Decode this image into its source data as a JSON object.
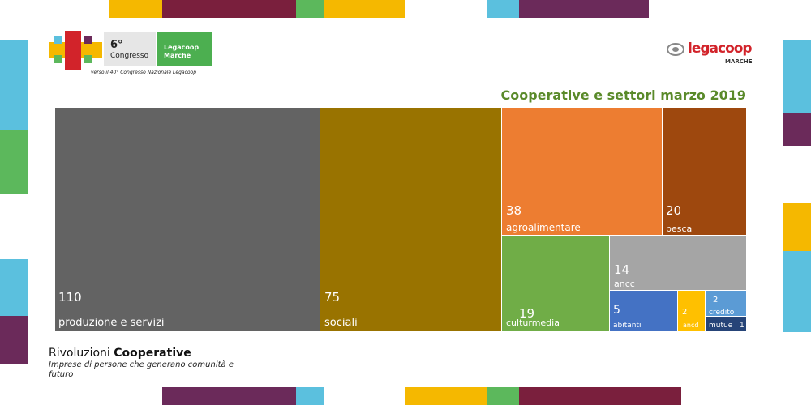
{
  "header": {
    "congress_number": "6°",
    "congress_word": "Congresso",
    "org_line1": "Legacoop",
    "org_line2": "Marche",
    "tagline": "verso il 40° Congresso Nazionale Legacoop",
    "brand": "legacoop",
    "brand_region": "MARCHE"
  },
  "footer": {
    "title_regular": "Rivoluzioni ",
    "title_bold": "Cooperative",
    "subtitle": "Imprese di persone che generano comunità e futuro"
  },
  "colors": {
    "title": "#5a8a2a",
    "accent_green": "#4caf50",
    "brand_red": "#d2232a"
  },
  "chart_data": {
    "type": "treemap",
    "title": "Cooperative e settori marzo 2019",
    "items": [
      {
        "label": "produzione e servizi",
        "value": 110,
        "color": "#636363"
      },
      {
        "label": "sociali",
        "value": 75,
        "color": "#997300"
      },
      {
        "label": "agroalimentare",
        "value": 38,
        "color": "#ed7d31"
      },
      {
        "label": "pesca",
        "value": 20,
        "color": "#9e480e"
      },
      {
        "label": "culturmedia",
        "value": 19,
        "color": "#70ad47"
      },
      {
        "label": "ancc",
        "value": 14,
        "color": "#a5a5a5"
      },
      {
        "label": "abitanti",
        "value": 5,
        "color": "#4472c4"
      },
      {
        "label": "ancd",
        "value": 2,
        "color": "#ffc000"
      },
      {
        "label": "credito",
        "value": 2,
        "color": "#5b9bd5"
      },
      {
        "label": "mutue",
        "value": 1,
        "color": "#264478"
      }
    ]
  }
}
